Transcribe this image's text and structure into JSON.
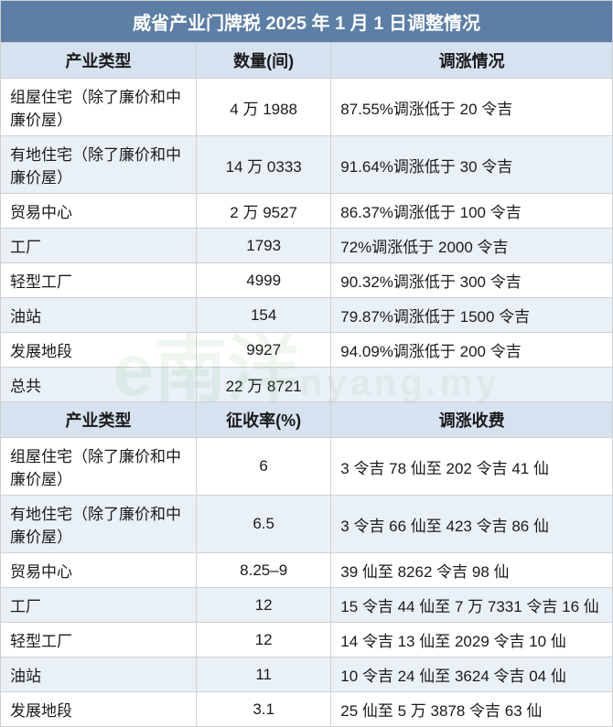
{
  "title": "威省产业门牌税 2025 年 1 月 1 日调整情况",
  "watermark_main": "e南洋",
  "watermark_sub": "nyang.my",
  "section1": {
    "headers": [
      "产业类型",
      "数量(间)",
      "调涨情况"
    ],
    "rows": [
      {
        "type": "组屋住宅（除了廉价和中廉价屋）",
        "qty": "4 万 1988",
        "info": "87.55%调涨低于 20 令吉",
        "alt": false
      },
      {
        "type": "有地住宅（除了廉价和中廉价屋）",
        "qty": "14 万 0333",
        "info": "91.64%调涨低于 30 令吉",
        "alt": true
      },
      {
        "type": "贸易中心",
        "qty": "2 万 9527",
        "info": "86.37%调涨低于 100 令吉",
        "alt": false
      },
      {
        "type": "工厂",
        "qty": "1793",
        "info": "72%调涨低于 2000 令吉",
        "alt": true
      },
      {
        "type": "轻型工厂",
        "qty": "4999",
        "info": "90.32%调涨低于 300 令吉",
        "alt": false
      },
      {
        "type": "油站",
        "qty": "154",
        "info": "79.87%调涨低于 1500 令吉",
        "alt": true
      },
      {
        "type": "发展地段",
        "qty": "9927",
        "info": "94.09%调涨低于 200 令吉",
        "alt": false
      }
    ],
    "total_label": "总共",
    "total_value": "22 万 8721"
  },
  "section2": {
    "headers": [
      "产业类型",
      "征收率(%)",
      "调涨收费"
    ],
    "rows": [
      {
        "type": "组屋住宅（除了廉价和中廉价屋）",
        "rate": "6",
        "fee": "3 令吉 78 仙至 202 令吉 41 仙",
        "alt": false
      },
      {
        "type": "有地住宅（除了廉价和中廉价屋）",
        "rate": "6.5",
        "fee": "3 令吉 66 仙至 423 令吉 86 仙",
        "alt": true
      },
      {
        "type": "贸易中心",
        "rate": "8.25–9",
        "fee": "39 仙至 8262 令吉 98 仙",
        "alt": false
      },
      {
        "type": "工厂",
        "rate": "12",
        "fee": "15 令吉 44 仙至 7 万 7331 令吉 16 仙",
        "alt": true
      },
      {
        "type": "轻型工厂",
        "rate": "12",
        "fee": "14 令吉 13 仙至 2029 令吉 10 仙",
        "alt": false
      },
      {
        "type": "油站",
        "rate": "11",
        "fee": "10 令吉 24 仙至 3624 令吉 04 仙",
        "alt": true
      },
      {
        "type": "发展地段",
        "rate": "3.1",
        "fee": "25 仙至 5 万 3878 令吉 63 仙",
        "alt": false
      }
    ]
  },
  "colors": {
    "title_bg": "#5b7fa6",
    "header_bg": "#d6e2ef",
    "alt_row_bg": "#eaf1f6",
    "border": "#d0d0d0",
    "text": "#1a1a1a",
    "title_text": "#ffffff"
  }
}
